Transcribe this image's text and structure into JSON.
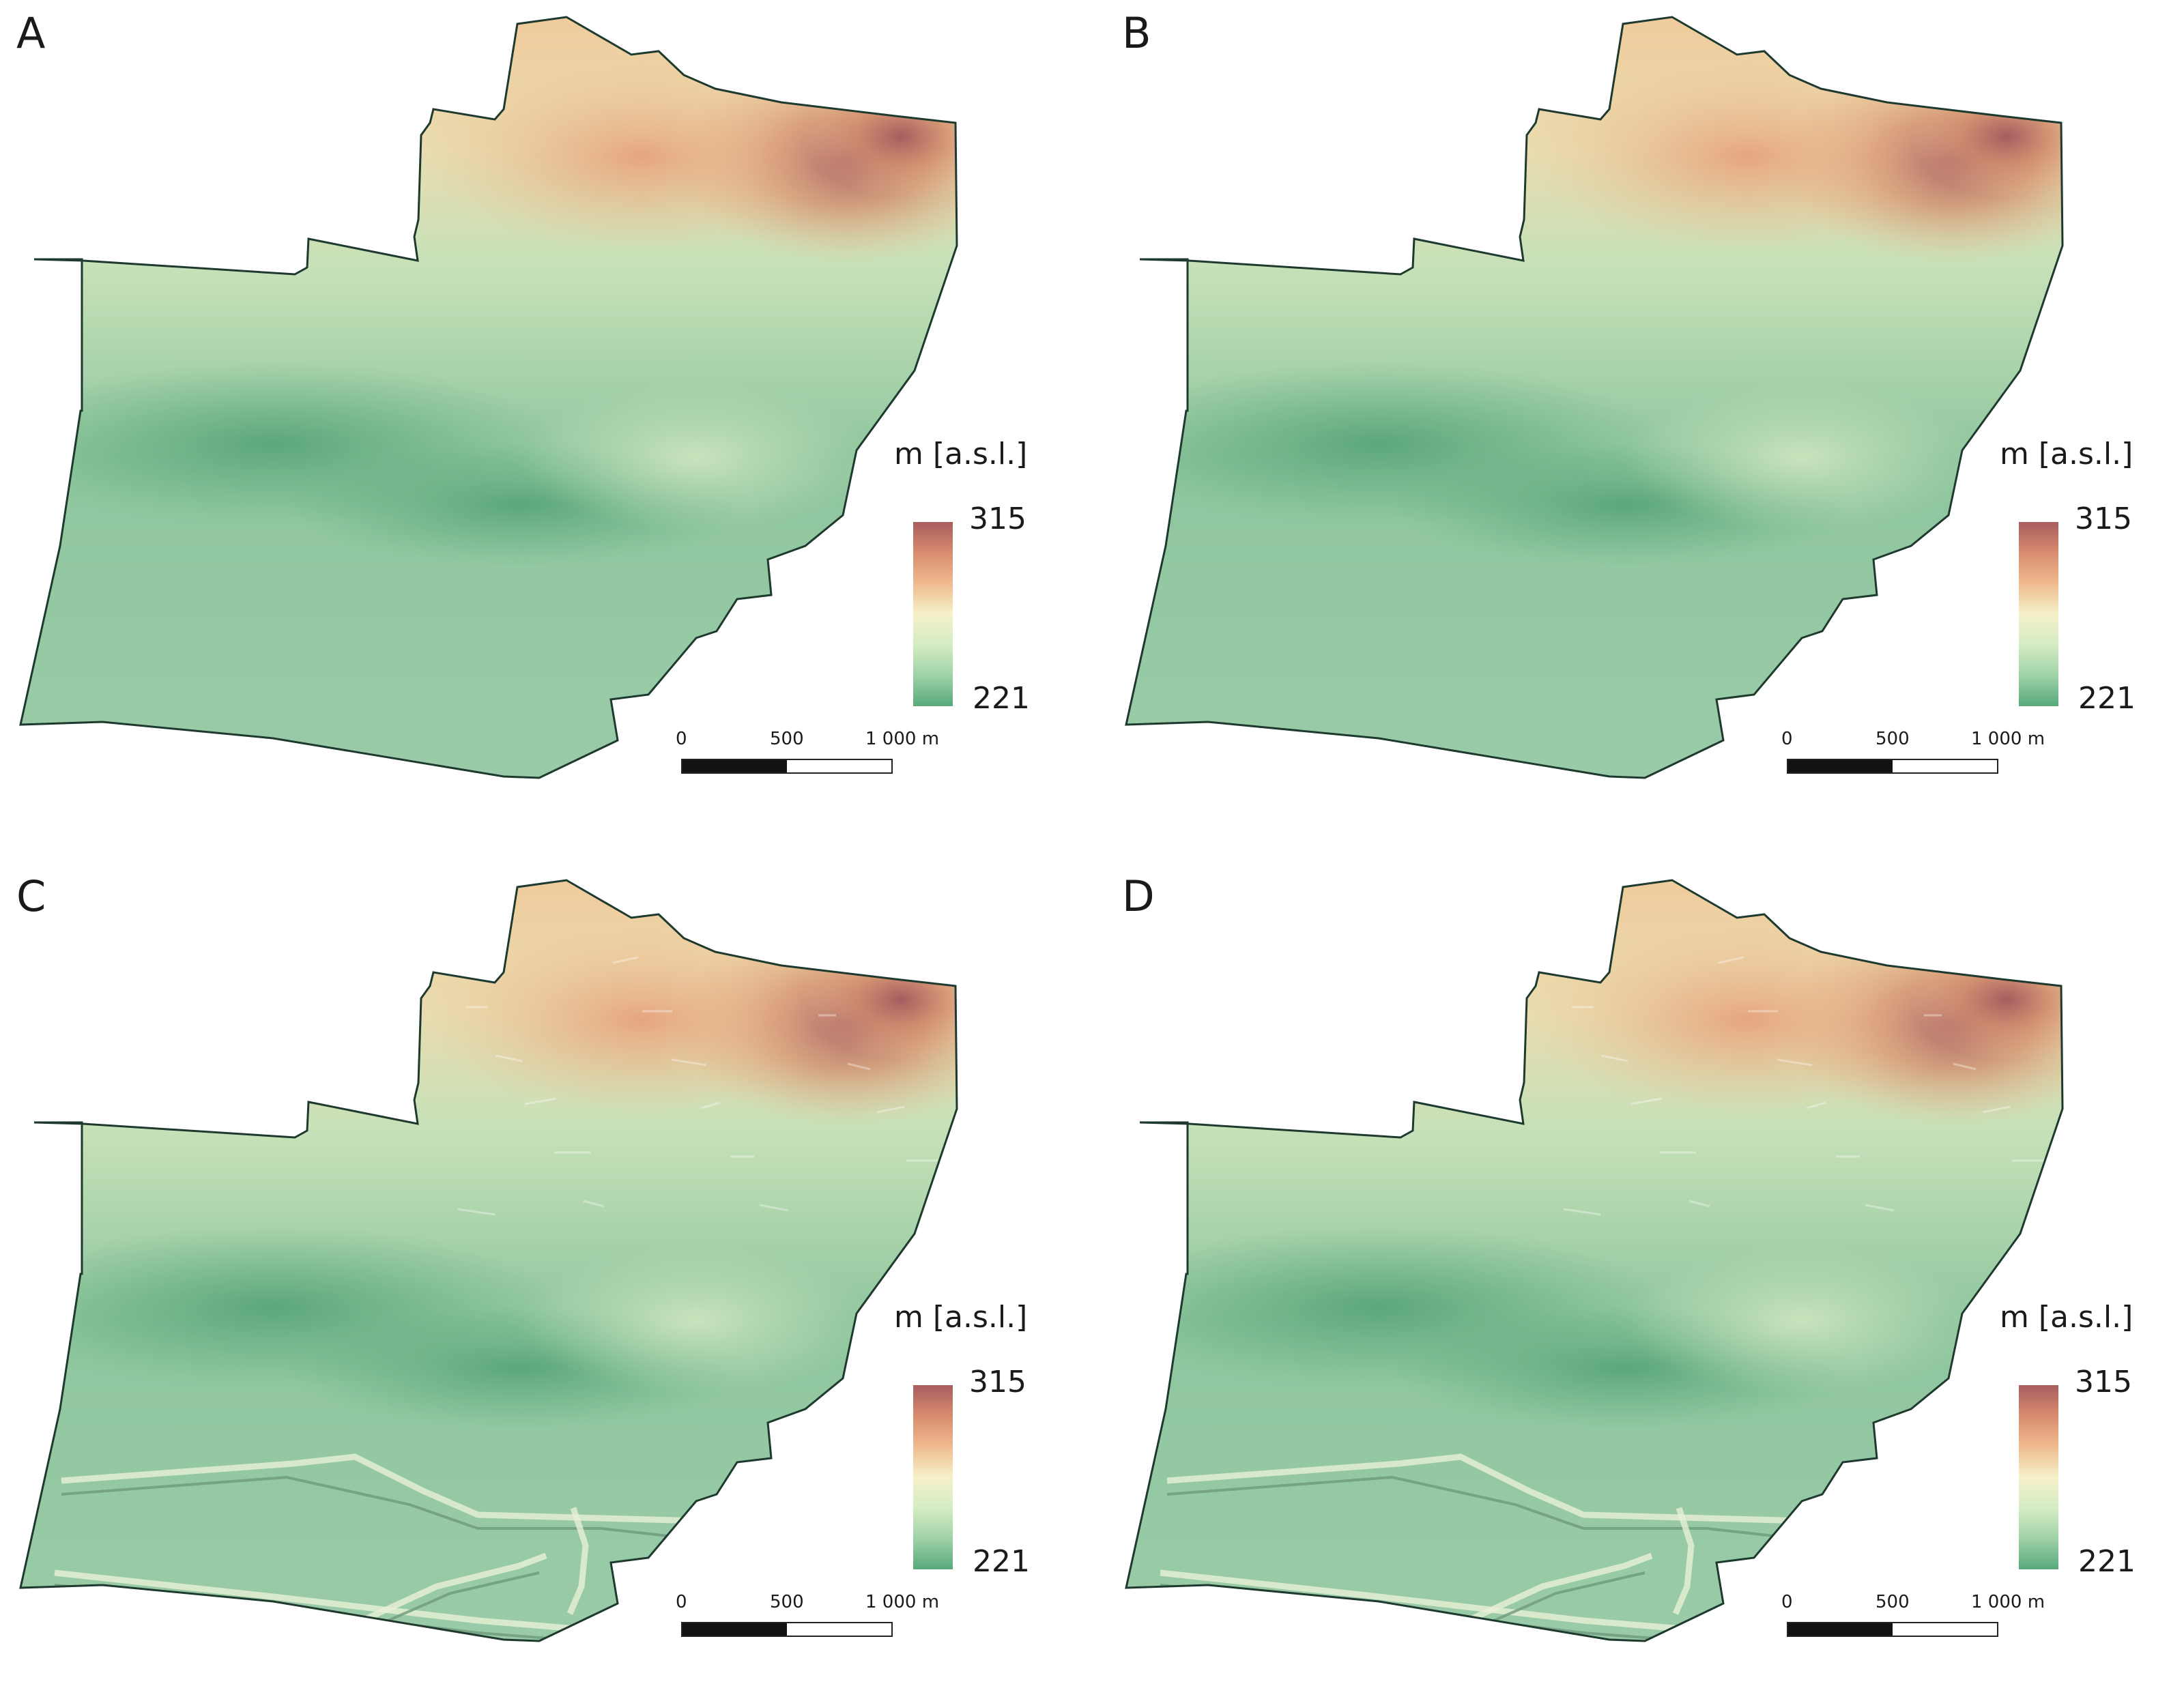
{
  "panels": [
    {
      "id": "A",
      "label": "A",
      "style": "smooth",
      "has_infrastructure": false
    },
    {
      "id": "B",
      "label": "B",
      "style": "smooth-relief",
      "has_infrastructure": false
    },
    {
      "id": "C",
      "label": "C",
      "style": "detailed",
      "has_infrastructure": true
    },
    {
      "id": "D",
      "label": "D",
      "style": "detailed",
      "has_infrastructure": true
    }
  ],
  "legend": {
    "title": "m [a.s.l.]",
    "max": "315",
    "min": "221",
    "colors": [
      "#a85d5f",
      "#d88c6e",
      "#efba8e",
      "#f6f1c9",
      "#d4ecc4",
      "#9fd2a6",
      "#57a97c"
    ]
  },
  "scalebar": {
    "label_0": "0",
    "label_mid": "500",
    "label_end": "1 000 m"
  },
  "colors": {
    "boundary": "#1e3a2e",
    "low": "#5faa7f",
    "high": "#a85d5f"
  }
}
